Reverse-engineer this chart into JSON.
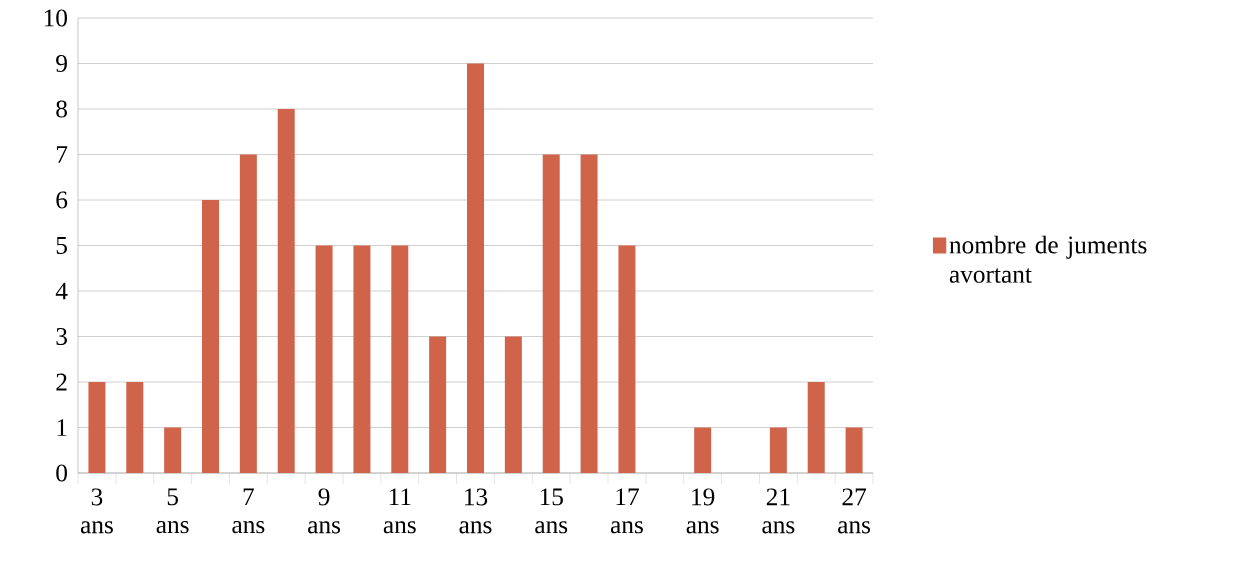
{
  "chart_data": {
    "type": "bar",
    "categories": [
      "3 ans",
      null,
      "5 ans",
      null,
      "7 ans",
      null,
      "9 ans",
      null,
      "11 ans",
      null,
      "13 ans",
      null,
      "15 ans",
      null,
      "17 ans",
      null,
      "19 ans",
      null,
      "21 ans",
      null,
      "27 ans"
    ],
    "series": [
      {
        "name": "nombre de juments avortant",
        "color": "#d0644a",
        "values": [
          2,
          2,
          1,
          6,
          7,
          8,
          5,
          5,
          5,
          3,
          9,
          3,
          7,
          7,
          5,
          0,
          1,
          0,
          1,
          2,
          1
        ]
      }
    ],
    "ylim": [
      0,
      10
    ],
    "yticks": [
      0,
      1,
      2,
      3,
      4,
      5,
      6,
      7,
      8,
      9,
      10
    ],
    "grid": "y",
    "legend": "right"
  }
}
